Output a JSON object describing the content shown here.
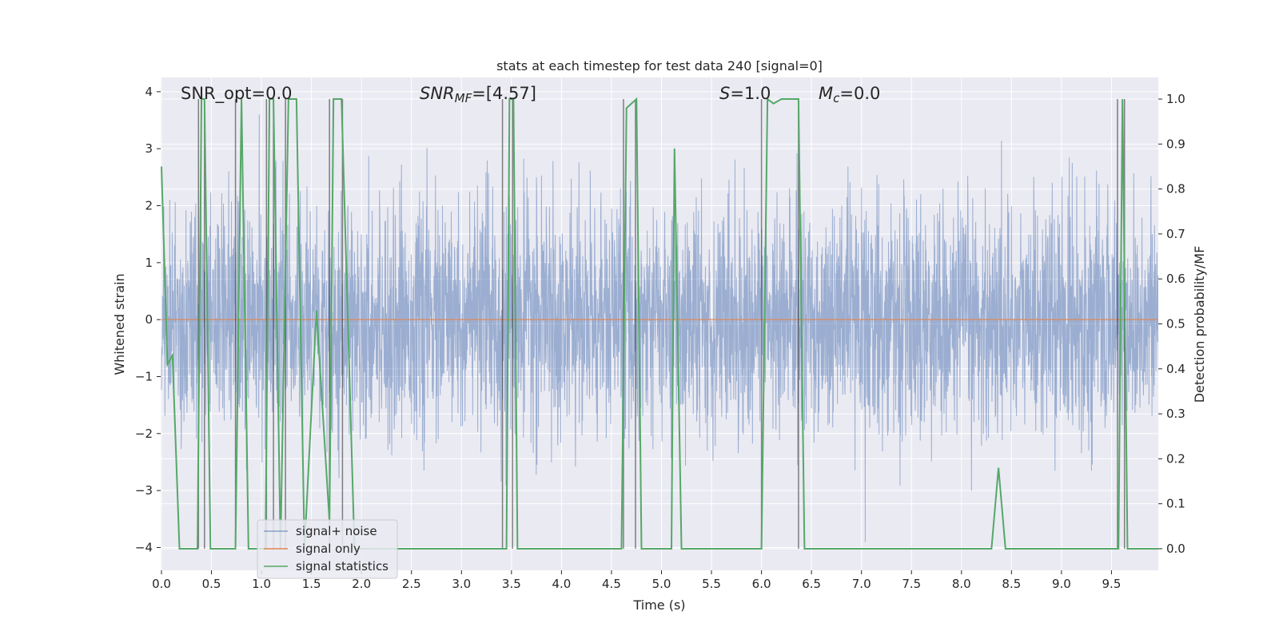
{
  "chart_data": {
    "type": "line",
    "title": "stats at each timestep for test data 240 [signal=0]",
    "xlabel": "Time (s)",
    "ylabel": "Whitened strain",
    "ylabel_right": "Detection probability/MF",
    "xlim": [
      0.0,
      10.0
    ],
    "ylim": [
      -4.4,
      4.25
    ],
    "ylim_right": [
      -0.048,
      1.048
    ],
    "xticks": [
      "0.0",
      "0.5",
      "1.0",
      "1.5",
      "2.0",
      "2.5",
      "3.0",
      "3.5",
      "4.0",
      "4.5",
      "5.0",
      "5.5",
      "6.0",
      "6.5",
      "7.0",
      "7.5",
      "8.0",
      "8.5",
      "9.0",
      "9.5"
    ],
    "yticks": [
      "4",
      "3",
      "2",
      "1",
      "0",
      "−1",
      "−2",
      "−3",
      "−4"
    ],
    "yticks_right": [
      "1.0",
      "0.9",
      "0.8",
      "0.7",
      "0.6",
      "0.5",
      "0.4",
      "0.3",
      "0.2",
      "0.1",
      "0.0"
    ],
    "grid": true,
    "legend_position": "lower-left",
    "annotations": {
      "snr_opt": "SNR_opt=0.0",
      "snr_mf_sym": "SNR",
      "snr_mf_sub": "MF",
      "snr_mf_val": "=[4.57]",
      "s_sym": "S",
      "s_val": "=1.0",
      "mc_sym": "M",
      "mc_sub": "c",
      "mc_val": "=0.0"
    },
    "series": [
      {
        "name": "signal+ noise",
        "color": "#4c72b0",
        "axis": "left",
        "description_values": "white Gaussian noise, std ~1, range approx -3.9 to 3.6"
      },
      {
        "name": "signal only",
        "color": "#dd8452",
        "axis": "left",
        "y": 0.0
      },
      {
        "name": "signal statistics",
        "color": "#55a868",
        "axis": "right",
        "points": [
          [
            0.0,
            0.85
          ],
          [
            0.06,
            0.41
          ],
          [
            0.11,
            0.43
          ],
          [
            0.18,
            0.0
          ],
          [
            0.36,
            0.0
          ],
          [
            0.4,
            1.0
          ],
          [
            0.43,
            1.0
          ],
          [
            0.49,
            0.0
          ],
          [
            0.74,
            0.0
          ],
          [
            0.8,
            1.0
          ],
          [
            0.87,
            0.0
          ],
          [
            1.04,
            0.0
          ],
          [
            1.08,
            1.0
          ],
          [
            1.12,
            1.0
          ],
          [
            1.19,
            0.0
          ],
          [
            1.27,
            1.0
          ],
          [
            1.3,
            1.0
          ],
          [
            1.35,
            1.0
          ],
          [
            1.43,
            0.0
          ],
          [
            1.55,
            0.53
          ],
          [
            1.68,
            0.06
          ],
          [
            1.72,
            1.0
          ],
          [
            1.8,
            1.0
          ],
          [
            1.93,
            0.0
          ],
          [
            3.45,
            0.0
          ],
          [
            3.48,
            1.0
          ],
          [
            3.52,
            1.0
          ],
          [
            3.56,
            0.0
          ],
          [
            3.7,
            0.0
          ],
          [
            4.6,
            0.0
          ],
          [
            4.65,
            0.98
          ],
          [
            4.7,
            0.99
          ],
          [
            4.75,
            1.0
          ],
          [
            4.8,
            0.0
          ],
          [
            5.1,
            0.0
          ],
          [
            5.13,
            0.89
          ],
          [
            5.2,
            0.0
          ],
          [
            5.98,
            0.0
          ],
          [
            6.0,
            0.0
          ],
          [
            6.06,
            1.0
          ],
          [
            6.12,
            0.99
          ],
          [
            6.2,
            1.0
          ],
          [
            6.3,
            1.0
          ],
          [
            6.37,
            1.0
          ],
          [
            6.43,
            0.0
          ],
          [
            8.3,
            0.0
          ],
          [
            8.37,
            0.18
          ],
          [
            8.44,
            0.0
          ],
          [
            9.57,
            0.0
          ],
          [
            9.61,
            1.0
          ],
          [
            9.66,
            0.0
          ],
          [
            10.0,
            0.0
          ]
        ]
      }
    ],
    "vlines": [
      0.37,
      0.43,
      0.74,
      1.05,
      1.12,
      1.24,
      1.68,
      1.81,
      3.41,
      3.51,
      4.62,
      4.74,
      6.0,
      6.37,
      9.56,
      9.63
    ]
  }
}
